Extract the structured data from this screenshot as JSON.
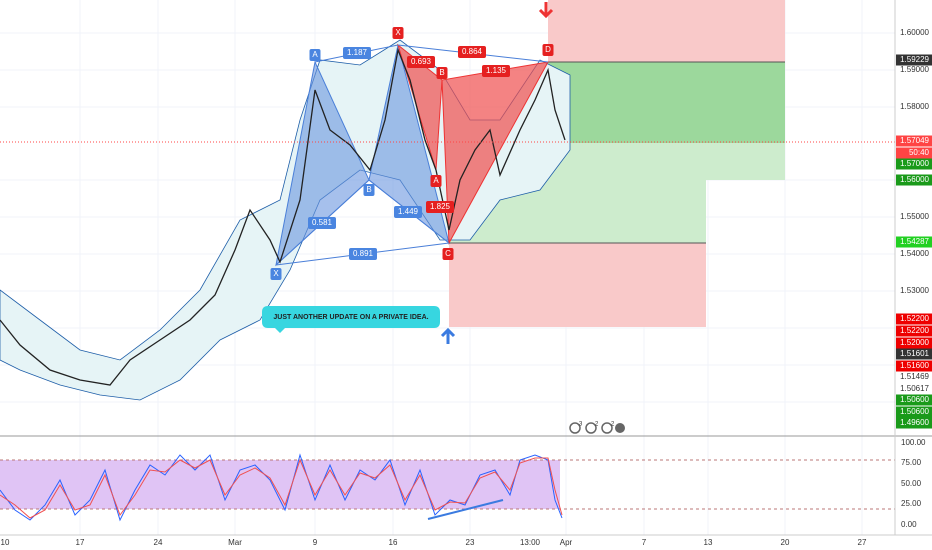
{
  "price_axis": [
    "1.60000",
    "1.59229",
    "1.59000",
    "1.58000",
    "1.57049",
    "50:40",
    "1.57000",
    "1.56000",
    "1.55000",
    "1.54287",
    "1.54000",
    "1.53000",
    "1.52200",
    "1.52200",
    "1.52000",
    "1.51601",
    "1.51600",
    "1.51469",
    "1.50617",
    "1.50600",
    "1.50600",
    "1.49600"
  ],
  "oscillator_axis": [
    "100.00",
    "75.00",
    "50.00",
    "25.00",
    "0.00"
  ],
  "time_axis": [
    "10",
    "17",
    "24",
    "Mar",
    "9",
    "16",
    "23",
    "13:00",
    "Apr",
    "7",
    "13",
    "20",
    "27"
  ],
  "pattern_labels": [
    "X",
    "0.864",
    "D",
    "A",
    "1.187",
    "0.693",
    "B",
    "1.135",
    "B",
    "A",
    "1.449",
    "1.825",
    "0.581",
    "X",
    "0.891",
    "C"
  ],
  "annotation": "JUST ANOTHER UPDATE ON A PRIVATE IDEA.",
  "badges": [
    "3",
    "2",
    "2"
  ]
}
